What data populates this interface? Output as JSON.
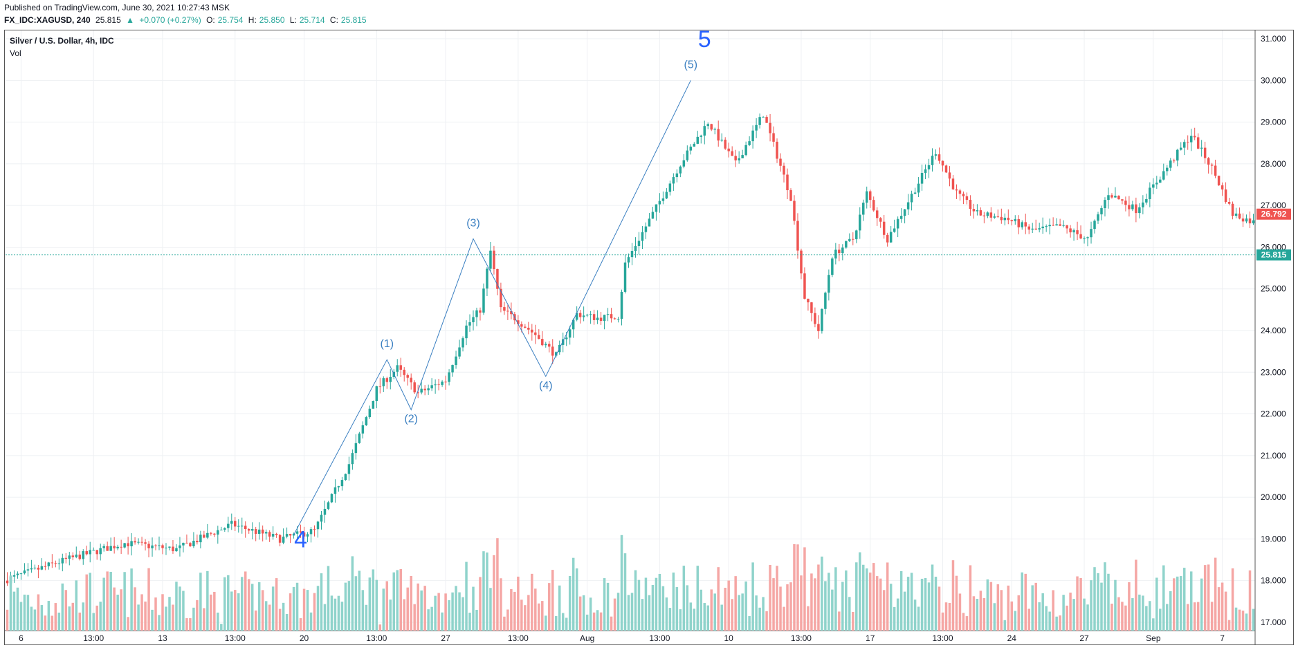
{
  "header": {
    "published": "Published on TradingView.com, June 30, 2021 10:27:43 MSK",
    "symbol": "FX_IDC:XAGUSD, 240",
    "last": "25.815",
    "change": "+0.070 (+0.27%)",
    "o_label": "O:",
    "o_val": "25.754",
    "h_label": "H:",
    "h_val": "25.850",
    "l_label": "L:",
    "l_val": "25.714",
    "c_label": "C:",
    "c_val": "25.815"
  },
  "legend": {
    "title": "Silver / U.S. Dollar, 4h, IDC",
    "vol": "Vol"
  },
  "colors": {
    "up": "#26a69a",
    "down": "#ef5350",
    "vol_up": "#8fd3cb",
    "vol_down": "#f5a6a4",
    "wave": "#2962ff",
    "wave_label": "#3a7fc1",
    "grid": "#eef0f3"
  },
  "price_labels": {
    "current": "26.792",
    "last": "25.815"
  },
  "chart_data": {
    "type": "candlestick",
    "ylim": [
      16.8,
      31.2
    ],
    "yticks": [
      17,
      18,
      19,
      20,
      21,
      22,
      23,
      24,
      25,
      26,
      27,
      28,
      29,
      30,
      31
    ],
    "ytick_labels": [
      "17.000",
      "18.000",
      "19.000",
      "20.000",
      "21.000",
      "22.000",
      "23.000",
      "24.000",
      "25.000",
      "26.000",
      "27.000",
      "28.000",
      "29.000",
      "30.000",
      "31.000"
    ],
    "xtick_labels": [
      "6",
      "13:00",
      "13",
      "13:00",
      "20",
      "13:00",
      "27",
      "13:00",
      "Aug",
      "13:00",
      "10",
      "13:00",
      "17",
      "13:00",
      "24",
      "27",
      "Sep",
      "7"
    ],
    "xtick_index": [
      4,
      25,
      45,
      66,
      86,
      107,
      127,
      148,
      168,
      189,
      209,
      230,
      250,
      271,
      291,
      312,
      332,
      352
    ],
    "num_bars": 362,
    "anchors": [
      [
        0,
        18.0
      ],
      [
        18,
        18.5
      ],
      [
        35,
        18.9
      ],
      [
        50,
        18.75
      ],
      [
        66,
        19.35
      ],
      [
        80,
        19.0
      ],
      [
        90,
        19.2
      ],
      [
        100,
        20.8
      ],
      [
        108,
        22.6
      ],
      [
        114,
        23.1
      ],
      [
        120,
        22.5
      ],
      [
        128,
        22.8
      ],
      [
        134,
        24.1
      ],
      [
        138,
        24.5
      ],
      [
        141,
        25.9
      ],
      [
        144,
        24.5
      ],
      [
        148,
        24.3
      ],
      [
        154,
        23.9
      ],
      [
        160,
        23.4
      ],
      [
        166,
        24.4
      ],
      [
        172,
        24.3
      ],
      [
        178,
        24.35
      ],
      [
        180,
        25.6
      ],
      [
        188,
        26.8
      ],
      [
        196,
        28.0
      ],
      [
        204,
        29.0
      ],
      [
        212,
        28.0
      ],
      [
        220,
        29.2
      ],
      [
        228,
        27.2
      ],
      [
        232,
        24.8
      ],
      [
        236,
        24.0
      ],
      [
        240,
        25.8
      ],
      [
        246,
        26.2
      ],
      [
        250,
        27.3
      ],
      [
        256,
        26.2
      ],
      [
        262,
        27.1
      ],
      [
        270,
        28.3
      ],
      [
        276,
        27.3
      ],
      [
        282,
        26.8
      ],
      [
        290,
        26.7
      ],
      [
        298,
        26.4
      ],
      [
        306,
        26.5
      ],
      [
        314,
        26.2
      ],
      [
        320,
        27.3
      ],
      [
        328,
        26.9
      ],
      [
        336,
        27.8
      ],
      [
        344,
        28.7
      ],
      [
        350,
        27.9
      ],
      [
        356,
        26.8
      ],
      [
        362,
        26.6
      ],
      [
        368,
        27.0
      ]
    ],
    "wave_points": [
      [
        83,
        19.1
      ],
      [
        110,
        23.3
      ],
      [
        117,
        22.1
      ],
      [
        135,
        26.2
      ],
      [
        156,
        22.9
      ],
      [
        198,
        30.0
      ]
    ],
    "wave_labels": [
      {
        "text": "4",
        "at": [
          85,
          18.8
        ]
      },
      {
        "text": "(1)",
        "at": [
          110,
          23.6
        ]
      },
      {
        "text": "(2)",
        "at": [
          117,
          21.8
        ]
      },
      {
        "text": "(3)",
        "at": [
          135,
          26.5
        ]
      },
      {
        "text": "(4)",
        "at": [
          156,
          22.6
        ]
      },
      {
        "text": "(5)",
        "at": [
          198,
          30.3
        ]
      },
      {
        "text": "5",
        "at": [
          202,
          30.8
        ]
      }
    ],
    "last_price": 25.815,
    "current_price": 26.792
  }
}
